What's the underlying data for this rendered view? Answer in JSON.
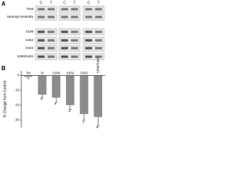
{
  "panel_a": {
    "label": "A",
    "groups": [
      [
        "C",
        "T"
      ],
      [
        "C",
        "T"
      ],
      [
        "C",
        "T"
      ]
    ],
    "rows": [
      "Total",
      "Sarkosyl Insoluble",
      "S199",
      "S262",
      "S422",
      "S396/S404"
    ]
  },
  "chart_data": {
    "type": "bar",
    "label": "B",
    "ylabel": "% Change from Control",
    "categories": [
      "Tot",
      "SI",
      "S199",
      "S262",
      "S422",
      "S396/S404"
    ],
    "values": [
      -1,
      -13,
      -15,
      -20,
      -26,
      -28
    ],
    "errors": [
      1,
      2,
      3,
      3,
      4,
      6
    ],
    "significance": [
      null,
      "*",
      "*",
      "*",
      "*",
      "*"
    ],
    "color": "#8c8c8c",
    "ylim": [
      -35,
      3
    ],
    "yticks": [
      0,
      -10,
      -20,
      -30
    ]
  }
}
